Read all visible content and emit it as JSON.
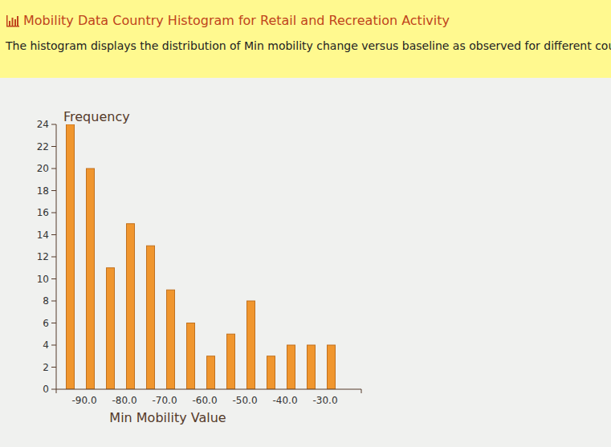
{
  "chart_data": {
    "type": "histogram",
    "title": "Mobility Data Country Histogram for Retail and Recreation Activity",
    "subtitle": "The histogram displays the distribution of Min mobility change versus baseline as observed for different countries.",
    "x_label": "Min Mobility Value",
    "y_label": "Frequency",
    "bins": [
      -96,
      -91,
      -86,
      -81,
      -76,
      -71,
      -66,
      -61,
      -56,
      -51,
      -46,
      -41,
      -36,
      -31,
      -26
    ],
    "values": [
      24,
      20,
      11,
      15,
      13,
      9,
      6,
      3,
      5,
      8,
      3,
      4,
      4,
      4
    ],
    "color": "#f0962e",
    "xlim": [
      -97,
      -21
    ],
    "ylim": [
      0,
      24
    ],
    "yticks": [
      0,
      2,
      4,
      6,
      8,
      10,
      12,
      14,
      16,
      18,
      20,
      22,
      24
    ],
    "xticks": [
      {
        "value": -90,
        "label": "-90.0"
      },
      {
        "value": -80,
        "label": "-80.0"
      },
      {
        "value": -70,
        "label": "-70.0"
      },
      {
        "value": -60,
        "label": "-60.0"
      },
      {
        "value": -50,
        "label": "-50.0"
      },
      {
        "value": -40,
        "label": "-40.0"
      },
      {
        "value": -30,
        "label": "-30.0"
      }
    ],
    "grid": false
  }
}
